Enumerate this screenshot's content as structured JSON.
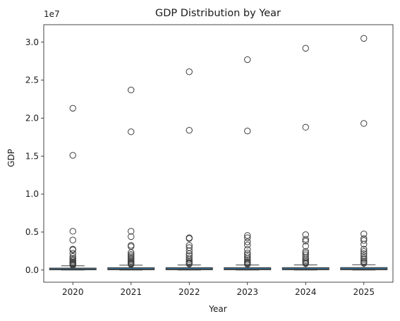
{
  "chart_data": {
    "type": "box",
    "title": "GDP Distribution by Year",
    "xlabel": "Year",
    "ylabel": "GDP",
    "scale_label": "1e7",
    "ylim": [
      -1600000,
      32300000
    ],
    "y_ticks": [
      0,
      5000000,
      10000000,
      15000000,
      20000000,
      25000000,
      30000000
    ],
    "y_tick_labels": [
      "0.0",
      "0.5",
      "1.0",
      "1.5",
      "2.0",
      "2.5",
      "3.0"
    ],
    "categories": [
      "2020",
      "2021",
      "2022",
      "2023",
      "2024",
      "2025"
    ],
    "box_color": "#3274a1",
    "boxes": [
      {
        "category": "2020",
        "q1": 30000,
        "median": 110000,
        "q3": 260000,
        "whisker_low": 2000,
        "whisker_high": 560000,
        "outliers": [
          21300000,
          15100000,
          5100000,
          3950000,
          2750000,
          2650000,
          2200000,
          1800000,
          1550000,
          1350000,
          1200000,
          1050000,
          950000,
          850000,
          780000,
          700000,
          640000
        ]
      },
      {
        "category": "2021",
        "q1": 35000,
        "median": 120000,
        "q3": 310000,
        "whisker_low": 2000,
        "whisker_high": 640000,
        "outliers": [
          23700000,
          18200000,
          5100000,
          4400000,
          3250000,
          3100000,
          2300000,
          2050000,
          1850000,
          1650000,
          1450000,
          1300000,
          1150000,
          1000000,
          900000,
          820000,
          740000
        ]
      },
      {
        "category": "2022",
        "q1": 35000,
        "median": 125000,
        "q3": 320000,
        "whisker_low": 2000,
        "whisker_high": 660000,
        "outliers": [
          26100000,
          18400000,
          4250000,
          4150000,
          3250000,
          2950000,
          2550000,
          2150000,
          1900000,
          1600000,
          1350000,
          1150000,
          1000000,
          900000,
          800000
        ]
      },
      {
        "category": "2023",
        "q1": 35000,
        "median": 125000,
        "q3": 320000,
        "whisker_low": 2000,
        "whisker_high": 660000,
        "outliers": [
          27700000,
          18300000,
          4550000,
          4250000,
          3700000,
          3300000,
          2700000,
          2250000,
          2000000,
          1750000,
          1500000,
          1300000,
          1100000,
          950000,
          850000,
          760000
        ]
      },
      {
        "category": "2024",
        "q1": 35000,
        "median": 125000,
        "q3": 320000,
        "whisker_low": 2000,
        "whisker_high": 670000,
        "outliers": [
          29200000,
          18800000,
          4650000,
          4050000,
          3800000,
          3150000,
          2450000,
          2250000,
          2000000,
          1700000,
          1450000,
          1250000,
          1100000,
          950000,
          850000
        ]
      },
      {
        "category": "2025",
        "q1": 35000,
        "median": 130000,
        "q3": 330000,
        "whisker_low": 2000,
        "whisker_high": 700000,
        "outliers": [
          30500000,
          19300000,
          4750000,
          4150000,
          3900000,
          3400000,
          2750000,
          2450000,
          2150000,
          1850000,
          1550000,
          1350000,
          1150000,
          1000000,
          880000
        ]
      }
    ]
  }
}
